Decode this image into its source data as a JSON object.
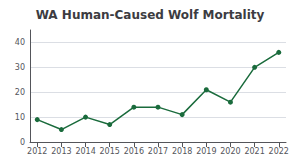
{
  "chart_data": {
    "type": "line",
    "title": "WA Human-Caused Wolf Mortality",
    "x": [
      2012,
      2013,
      2014,
      2015,
      2016,
      2017,
      2018,
      2019,
      2020,
      2021,
      2022
    ],
    "values": [
      9,
      5,
      10,
      7,
      14,
      14,
      11,
      21,
      16,
      30,
      36
    ],
    "color": "#1a6b3c",
    "marker": "circle",
    "xlim": [
      2011.7,
      2022.3
    ],
    "xticks": [
      2012,
      2013,
      2014,
      2015,
      2016,
      2017,
      2018,
      2019,
      2020,
      2021,
      2022
    ],
    "ylim": [
      0,
      45
    ],
    "yticks": [
      0,
      10,
      20,
      30,
      40
    ],
    "grid": true
  }
}
